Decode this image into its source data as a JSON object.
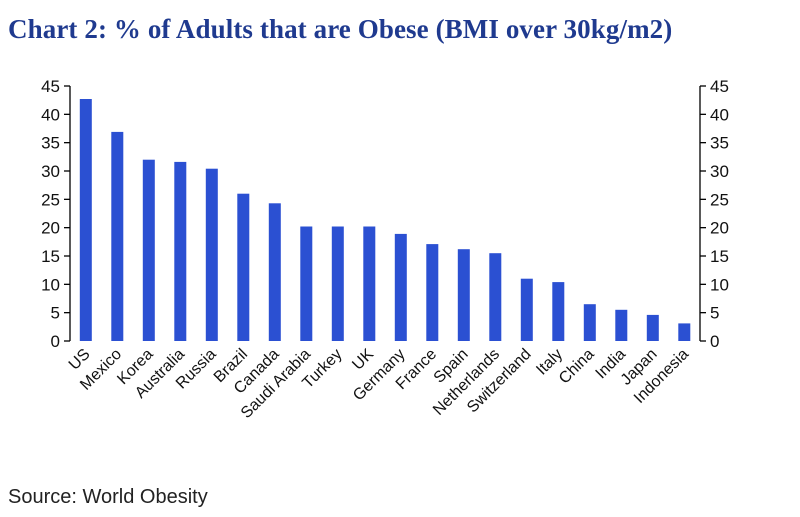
{
  "title": "Chart 2: % of Adults that are Obese (BMI over 30kg/m2)",
  "source": "Source: World Obesity",
  "colors": {
    "bar": "#2b50d2",
    "title": "#1f3a8f",
    "axis": "#000000"
  },
  "chart_data": {
    "type": "bar",
    "title": "Chart 2: % of Adults that are Obese (BMI over 30kg/m2)",
    "xlabel": "",
    "ylabel": "",
    "ylim": [
      0,
      45
    ],
    "yticks": [
      0,
      5,
      10,
      15,
      20,
      25,
      30,
      35,
      40,
      45
    ],
    "secondary_axis": true,
    "grid": false,
    "categories": [
      "US",
      "Mexico",
      "Korea",
      "Australia",
      "Russia",
      "Brazil",
      "Canada",
      "Saudi Arabia",
      "Turkey",
      "UK",
      "Germany",
      "France",
      "Spain",
      "Netherlands",
      "Switzerland",
      "Italy",
      "China",
      "India",
      "Japan",
      "Indonesia"
    ],
    "values": [
      42.7,
      36.9,
      32.0,
      31.6,
      30.4,
      26.0,
      24.3,
      20.2,
      20.2,
      20.2,
      18.9,
      17.1,
      16.2,
      15.5,
      11.0,
      10.4,
      6.5,
      5.5,
      4.6,
      3.1
    ]
  }
}
